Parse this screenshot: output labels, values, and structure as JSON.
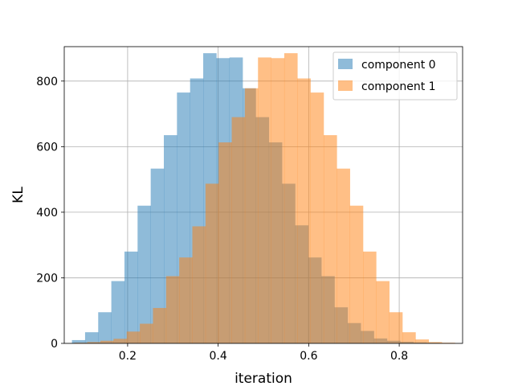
{
  "chart_data": {
    "type": "histogram",
    "xlabel": "iteration",
    "ylabel": "KL",
    "xlim": [
      0.06,
      0.94
    ],
    "ylim": [
      0,
      905
    ],
    "xticks": [
      0.2,
      0.4,
      0.6,
      0.8
    ],
    "xtick_labels": [
      "0.2",
      "0.4",
      "0.6",
      "0.8"
    ],
    "yticks": [
      0,
      200,
      400,
      600,
      800
    ],
    "ytick_labels": [
      "0",
      "200",
      "400",
      "600",
      "800"
    ],
    "grid": true,
    "legend_position": "top-right",
    "bar_alpha": 0.5,
    "series": [
      {
        "name": "component 0",
        "color": "#1f77b4",
        "bin_edges": [
          0.077,
          0.106,
          0.135,
          0.164,
          0.193,
          0.222,
          0.251,
          0.28,
          0.309,
          0.338,
          0.367,
          0.396,
          0.425,
          0.454,
          0.483,
          0.512,
          0.541,
          0.57,
          0.599,
          0.628,
          0.657,
          0.686,
          0.715,
          0.744,
          0.773,
          0.802,
          0.831,
          0.86,
          0.889,
          0.918
        ],
        "counts": [
          10,
          34,
          95,
          190,
          280,
          420,
          533,
          635,
          765,
          808,
          885,
          870,
          872,
          778,
          690,
          613,
          487,
          360,
          262,
          205,
          110,
          62,
          38,
          15,
          8,
          5,
          3,
          2,
          1
        ]
      },
      {
        "name": "component 1",
        "color": "#ff7f0e",
        "bin_edges": [
          0.082,
          0.111,
          0.14,
          0.169,
          0.198,
          0.227,
          0.256,
          0.285,
          0.314,
          0.343,
          0.372,
          0.401,
          0.43,
          0.459,
          0.488,
          0.517,
          0.546,
          0.575,
          0.604,
          0.633,
          0.662,
          0.691,
          0.72,
          0.749,
          0.778,
          0.807,
          0.836,
          0.865,
          0.894,
          0.923
        ],
        "counts": [
          2,
          4,
          8,
          14,
          36,
          60,
          108,
          205,
          262,
          357,
          487,
          613,
          690,
          778,
          872,
          870,
          885,
          808,
          765,
          635,
          533,
          420,
          280,
          190,
          95,
          34,
          12,
          4,
          2
        ]
      }
    ]
  }
}
